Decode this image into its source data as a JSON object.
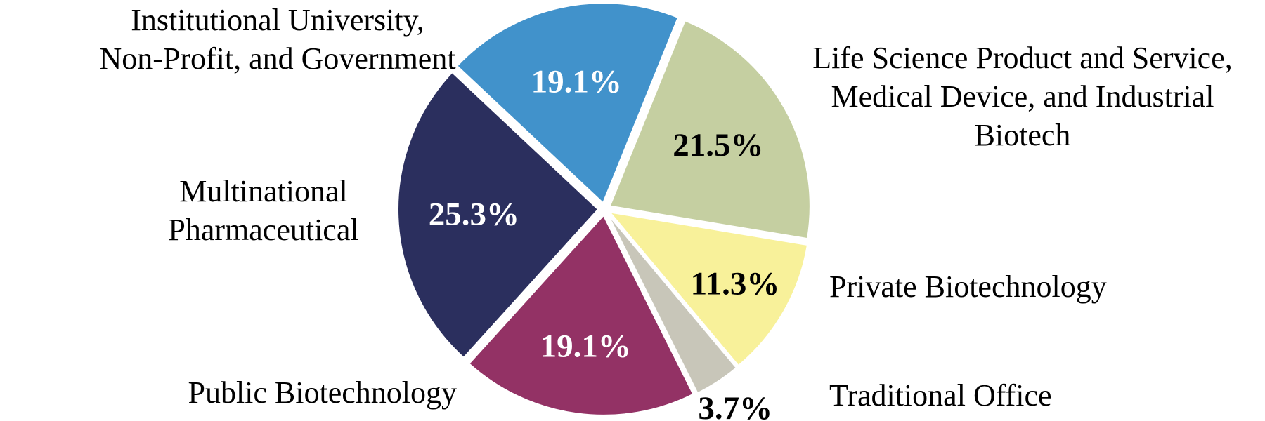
{
  "chart_data": {
    "type": "pie",
    "title": "",
    "start_angle_deg": 22,
    "direction": "clockwise",
    "slices": [
      {
        "label_lines": [
          "Life Science Product and Service,",
          "Medical Device, and Industrial",
          "Biotech"
        ],
        "value": 21.5,
        "value_label": "21.5%",
        "color": "#C5CFA1",
        "value_label_color": "#000000"
      },
      {
        "label_lines": [
          "Private Biotechnology"
        ],
        "value": 11.3,
        "value_label": "11.3%",
        "color": "#F8F19A",
        "value_label_color": "#000000"
      },
      {
        "label_lines": [
          "Traditional Office"
        ],
        "value": 3.7,
        "value_label": "3.7%",
        "color": "#C8C6B9",
        "value_label_color": "#000000"
      },
      {
        "label_lines": [
          "Public Biotechnology"
        ],
        "value": 19.1,
        "value_label": "19.1%",
        "color": "#933265",
        "value_label_color": "#FFFFFF"
      },
      {
        "label_lines": [
          "Multinational",
          "Pharmaceutical"
        ],
        "value": 25.3,
        "value_label": "25.3%",
        "color": "#2B2F5E",
        "value_label_color": "#FFFFFF"
      },
      {
        "label_lines": [
          "Institutional University,",
          "Non-Profit, and Government"
        ],
        "value": 19.1,
        "value_label": "19.1%",
        "color": "#4192CB",
        "value_label_color": "#FFFFFF"
      }
    ]
  }
}
